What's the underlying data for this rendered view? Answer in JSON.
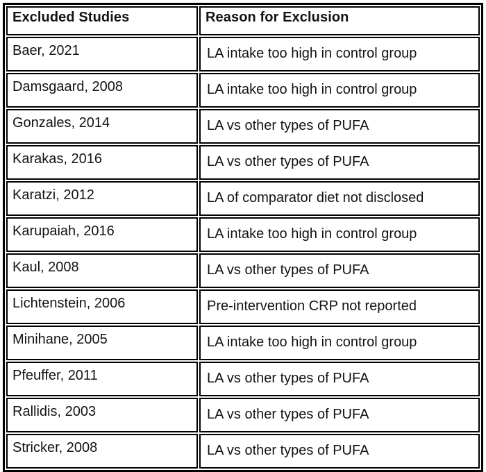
{
  "table": {
    "headers": [
      "Excluded Studies",
      "Reason for Exclusion"
    ],
    "rows": [
      {
        "study": "Baer, 2021",
        "reason": "LA intake too high in control group"
      },
      {
        "study": "Damsgaard, 2008",
        "reason": "LA intake too high in control group"
      },
      {
        "study": "Gonzales, 2014",
        "reason": "LA vs other types of PUFA"
      },
      {
        "study": "Karakas, 2016",
        "reason": "LA vs other types of PUFA"
      },
      {
        "study": "Karatzi, 2012",
        "reason": "LA of comparator diet not disclosed"
      },
      {
        "study": "Karupaiah, 2016",
        "reason": "LA intake too high in control group"
      },
      {
        "study": "Kaul, 2008",
        "reason": "LA vs other types of PUFA"
      },
      {
        "study": "Lichtenstein, 2006",
        "reason": "Pre-intervention CRP not reported"
      },
      {
        "study": "Minihane, 2005",
        "reason": "LA intake too high in control group"
      },
      {
        "study": "Pfeuffer, 2011",
        "reason": "LA vs other types of PUFA"
      },
      {
        "study": "Rallidis, 2003",
        "reason": "LA vs other types of PUFA"
      },
      {
        "study": "Stricker, 2008",
        "reason": "LA vs other types of PUFA"
      }
    ]
  },
  "colors": {
    "border": "#000000",
    "text": "#131313",
    "background": "#ffffff"
  }
}
